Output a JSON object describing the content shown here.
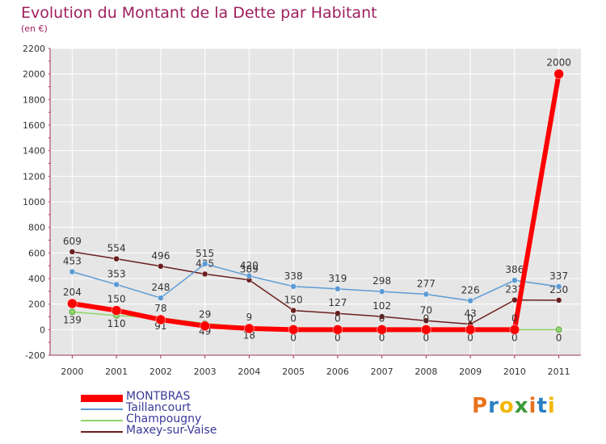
{
  "title": "Evolution du Montant de la Dette par Habitant",
  "subtitle": "(en €)",
  "logo": {
    "text": "Proxiti",
    "colors": [
      "#e8731c",
      "#2a7fc1",
      "#f2b705",
      "#3a9a3a",
      "#e8731c",
      "#2a7fc1",
      "#f2b705"
    ]
  },
  "chart_data": {
    "type": "line",
    "title": "Evolution du Montant de la Dette par Habitant",
    "ylabel": "(en €)",
    "xlabel": "",
    "x": [
      "2000",
      "2001",
      "2002",
      "2003",
      "2004",
      "2005",
      "2006",
      "2007",
      "2008",
      "2009",
      "2010",
      "2011"
    ],
    "ylim": [
      -200,
      2200
    ],
    "yticks": [
      "-200",
      "0",
      "200",
      "400",
      "600",
      "800",
      "1000",
      "1200",
      "1400",
      "1600",
      "1800",
      "2000",
      "2200"
    ],
    "grid": true,
    "legend": "bottom-left",
    "series": [
      {
        "name": "Maxey-sur-Vaise",
        "color": "#6b1e1e",
        "values": [
          609,
          554,
          496,
          435,
          389,
          150,
          127,
          102,
          70,
          43,
          232,
          230
        ],
        "labels": [
          "609",
          "554",
          "496",
          "435",
          "389",
          "150",
          "127",
          "102",
          "70",
          "43",
          "232",
          "230"
        ]
      },
      {
        "name": "Taillancourt",
        "color": "#5b9bd5",
        "values": [
          453,
          353,
          248,
          515,
          420,
          338,
          319,
          298,
          277,
          226,
          386,
          337
        ],
        "labels": [
          "453",
          "353",
          "248",
          "515",
          "420",
          "338",
          "319",
          "298",
          "277",
          "226",
          "386",
          "337"
        ]
      },
      {
        "name": "Champougny",
        "color": "#8fd66b",
        "values": [
          139,
          110,
          91,
          49,
          18,
          0,
          0,
          0,
          0,
          0,
          0,
          0
        ],
        "labels": [
          "139",
          "110",
          "91",
          "49",
          "18",
          "0",
          "0",
          "0",
          "0",
          "0",
          "0",
          "0"
        ]
      },
      {
        "name": "MONTBRAS",
        "color": "#ff0000",
        "values": [
          204,
          150,
          78,
          29,
          9,
          0,
          0,
          0,
          0,
          0,
          0,
          2000
        ],
        "labels": [
          "204",
          "150",
          "78",
          "29",
          "9",
          "0",
          "0",
          "0",
          "0",
          "0",
          "0",
          "2000"
        ]
      }
    ]
  }
}
